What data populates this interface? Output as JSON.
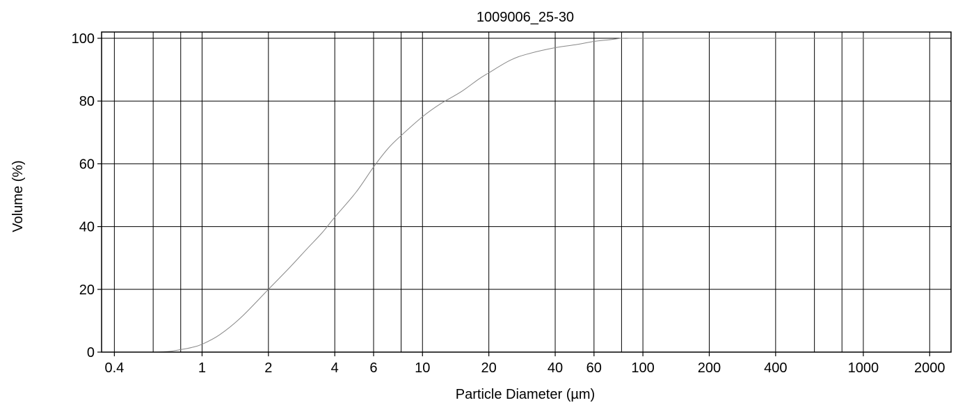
{
  "chart_data": {
    "type": "line",
    "title": "1009006_25-30",
    "xlabel": "Particle Diameter (µm)",
    "ylabel": "Volume (%)",
    "x_scale": "log",
    "xlim": [
      0.35,
      2500
    ],
    "ylim": [
      0,
      102
    ],
    "grid": true,
    "x_tick_labels": [
      "0.4",
      "1",
      "2",
      "4",
      "6",
      "10",
      "20",
      "40",
      "60",
      "100",
      "200",
      "400",
      "1000",
      "2000"
    ],
    "y_tick_labels": [
      "0",
      "20",
      "40",
      "60",
      "80",
      "100"
    ],
    "x_grid_values": [
      0.4,
      0.6,
      0.8,
      1,
      2,
      4,
      6,
      8,
      10,
      20,
      40,
      60,
      80,
      100,
      200,
      400,
      600,
      800,
      1000,
      2000
    ],
    "y_grid_values": [
      0,
      20,
      40,
      60,
      80,
      100
    ],
    "series": [
      {
        "color": "#888888",
        "x": [
          0.37,
          0.4,
          0.5,
          0.6,
          0.7,
          0.8,
          0.9,
          1.0,
          1.2,
          1.5,
          2.0,
          2.5,
          3.0,
          3.5,
          4.0,
          5.0,
          6.0,
          7.0,
          8.0,
          10,
          12,
          15,
          18,
          20,
          25,
          30,
          40,
          50,
          60,
          70,
          80,
          90,
          100,
          200,
          500,
          1000,
          2000
        ],
        "y": [
          0,
          0,
          0,
          0,
          0.2,
          0.8,
          1.5,
          2.5,
          5.5,
          11,
          20,
          27,
          33,
          38,
          43,
          51,
          59,
          65,
          69,
          75,
          79,
          83,
          87,
          89,
          93,
          95,
          97,
          98,
          99,
          99.5,
          100,
          100,
          100,
          100,
          100,
          100,
          100
        ]
      }
    ]
  }
}
